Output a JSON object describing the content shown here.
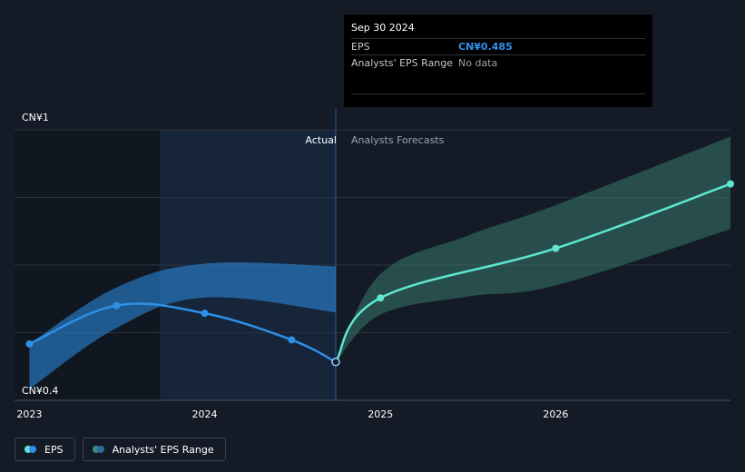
{
  "chart_data": {
    "type": "line",
    "y_axis": {
      "ylim": [
        0.4,
        1.0
      ],
      "tick_labels": [
        "CN¥1",
        "CN¥0.4"
      ],
      "tick_values": [
        1.0,
        0.4
      ],
      "grid": true
    },
    "x_axis": {
      "tick_labels": [
        "2023",
        "2024",
        "2025",
        "2026"
      ],
      "xlim": [
        "2022-12-01",
        "2026-12-31"
      ]
    },
    "section_labels": {
      "actual": "Actual",
      "forecast": "Analysts Forecasts"
    },
    "divider_date": "2024-09-30",
    "highlight_range": [
      "2023-09-30",
      "2024-09-30"
    ],
    "series": [
      {
        "name": "EPS",
        "color": "#2e90e8",
        "points": [
          {
            "x": "2023-01-01",
            "y": 0.525
          },
          {
            "x": "2023-07-01",
            "y": 0.61
          },
          {
            "x": "2024-01-01",
            "y": 0.593
          },
          {
            "x": "2024-06-30",
            "y": 0.534
          },
          {
            "x": "2024-09-30",
            "y": 0.485
          }
        ]
      },
      {
        "name": "EPS forecast",
        "color": "#5ee6d0",
        "points": [
          {
            "x": "2024-09-30",
            "y": 0.485
          },
          {
            "x": "2025-01-01",
            "y": 0.627
          },
          {
            "x": "2026-01-01",
            "y": 0.737
          },
          {
            "x": "2026-12-31",
            "y": 0.88
          }
        ]
      }
    ],
    "ranges": [
      {
        "name": "Analysts' EPS Range (actual)",
        "color": "#2e90e8",
        "points": [
          {
            "x": "2023-01-01",
            "low": 0.425,
            "high": 0.525
          },
          {
            "x": "2023-07-01",
            "low": 0.56,
            "high": 0.65
          },
          {
            "x": "2024-01-01",
            "low": 0.628,
            "high": 0.703
          },
          {
            "x": "2024-09-30",
            "low": 0.595,
            "high": 0.697
          }
        ]
      },
      {
        "name": "Analysts' EPS Range (forecast)",
        "color": "#3d8b7c",
        "points": [
          {
            "x": "2024-09-30",
            "low": 0.485,
            "high": 0.485
          },
          {
            "x": "2025-01-01",
            "low": 0.59,
            "high": 0.68
          },
          {
            "x": "2025-07-01",
            "low": 0.63,
            "high": 0.765
          },
          {
            "x": "2026-01-01",
            "low": 0.655,
            "high": 0.833
          },
          {
            "x": "2026-12-31",
            "low": 0.78,
            "high": 0.985
          }
        ]
      }
    ]
  },
  "tooltip": {
    "date": "Sep 30 2024",
    "rows": [
      {
        "label": "EPS",
        "value": "CN¥0.485"
      },
      {
        "label": "Analysts' EPS Range",
        "value": "No data"
      }
    ]
  },
  "legend": {
    "items": [
      {
        "label": "EPS",
        "color_a": "#5ee6d0",
        "color_b": "#2e90e8"
      },
      {
        "label": "Analysts' EPS Range",
        "color_a": "#3d8b7c",
        "color_b": "#2e6e9a"
      }
    ]
  }
}
